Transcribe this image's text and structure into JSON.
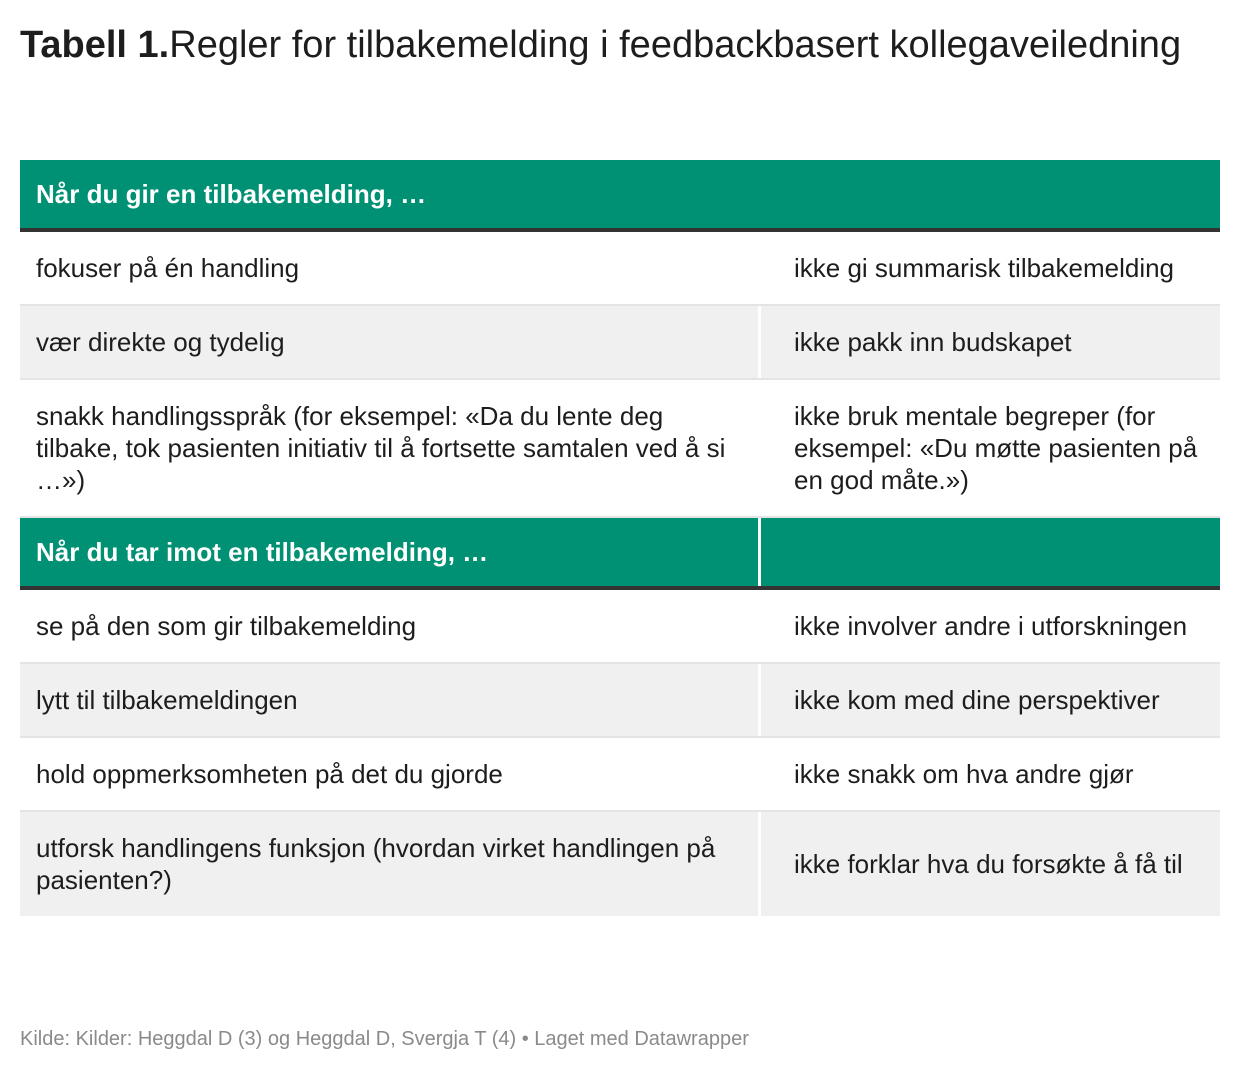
{
  "title": {
    "label": "Tabell 1.",
    "text": "Regler for tilbakemelding i feedbackbasert kollegaveiledning"
  },
  "sections": [
    {
      "header": "Når du gir en tilbakemelding, …",
      "rows": [
        [
          "fokuser på én handling",
          "ikke gi summarisk tilbakemelding"
        ],
        [
          "vær direkte og tydelig",
          "ikke pakk inn budskapet"
        ],
        [
          "snakk handlingsspråk (for eksempel: «Da du lente deg tilbake, tok pasienten initiativ til å fortsette samtalen ved å si …»)",
          "ikke bruk mentale begreper (for eksempel: «Du møtte pasienten på en god måte.»)"
        ]
      ]
    },
    {
      "header": "Når du tar imot en tilbakemelding, …",
      "rows": [
        [
          "se på den som gir tilbakemelding",
          "ikke involver andre i utforskningen"
        ],
        [
          "lytt til tilbakemeldingen",
          "ikke kom med dine perspektiver"
        ],
        [
          "hold oppmerksomheten på det du gjorde",
          "ikke snakk om hva andre gjør"
        ],
        [
          "utforsk handlingens funksjon (hvordan virket handlingen på pasienten?)",
          "ikke forklar hva du forsøkte å få til"
        ]
      ]
    }
  ],
  "footer": "Kilde: Kilder: Heggdal D (3) og Heggdal D, Svergja T (4) • Laget med Datawrapper"
}
